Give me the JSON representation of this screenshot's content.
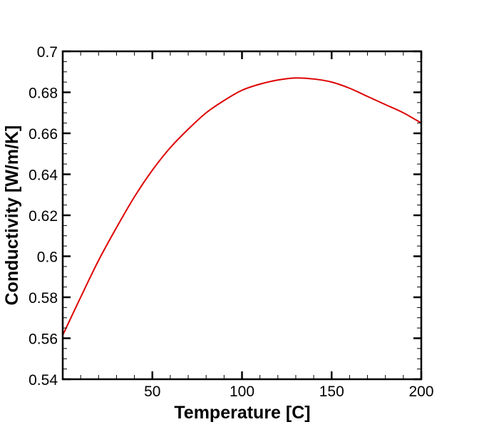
{
  "chart_data": {
    "type": "line",
    "title": "",
    "xlabel": "Temperature [C]",
    "ylabel": "Conductivity [W/m/K]",
    "xlim": [
      0,
      200
    ],
    "ylim": [
      0.54,
      0.7
    ],
    "xticks": [
      50,
      100,
      150,
      200
    ],
    "xtick_labels": [
      "50",
      "100",
      "150",
      "200"
    ],
    "yticks": [
      0.54,
      0.56,
      0.58,
      0.6,
      0.62,
      0.64,
      0.66,
      0.68,
      0.7
    ],
    "ytick_labels": [
      "0.54",
      "0.56",
      "0.58",
      "0.6",
      "0.62",
      "0.64",
      "0.66",
      "0.68",
      "0.7"
    ],
    "x_minor_step": 10,
    "y_minor_step": 0.005,
    "grid": false,
    "legend": null,
    "series": [
      {
        "name": "Conductivity",
        "color": "#dd0000",
        "x": [
          0,
          10,
          20,
          30,
          40,
          50,
          60,
          70,
          80,
          90,
          100,
          110,
          120,
          130,
          140,
          150,
          160,
          170,
          180,
          190,
          200
        ],
        "y": [
          0.5615,
          0.58,
          0.598,
          0.614,
          0.629,
          0.642,
          0.653,
          0.662,
          0.67,
          0.676,
          0.681,
          0.684,
          0.686,
          0.687,
          0.6865,
          0.685,
          0.682,
          0.678,
          0.674,
          0.67,
          0.665
        ]
      }
    ]
  }
}
